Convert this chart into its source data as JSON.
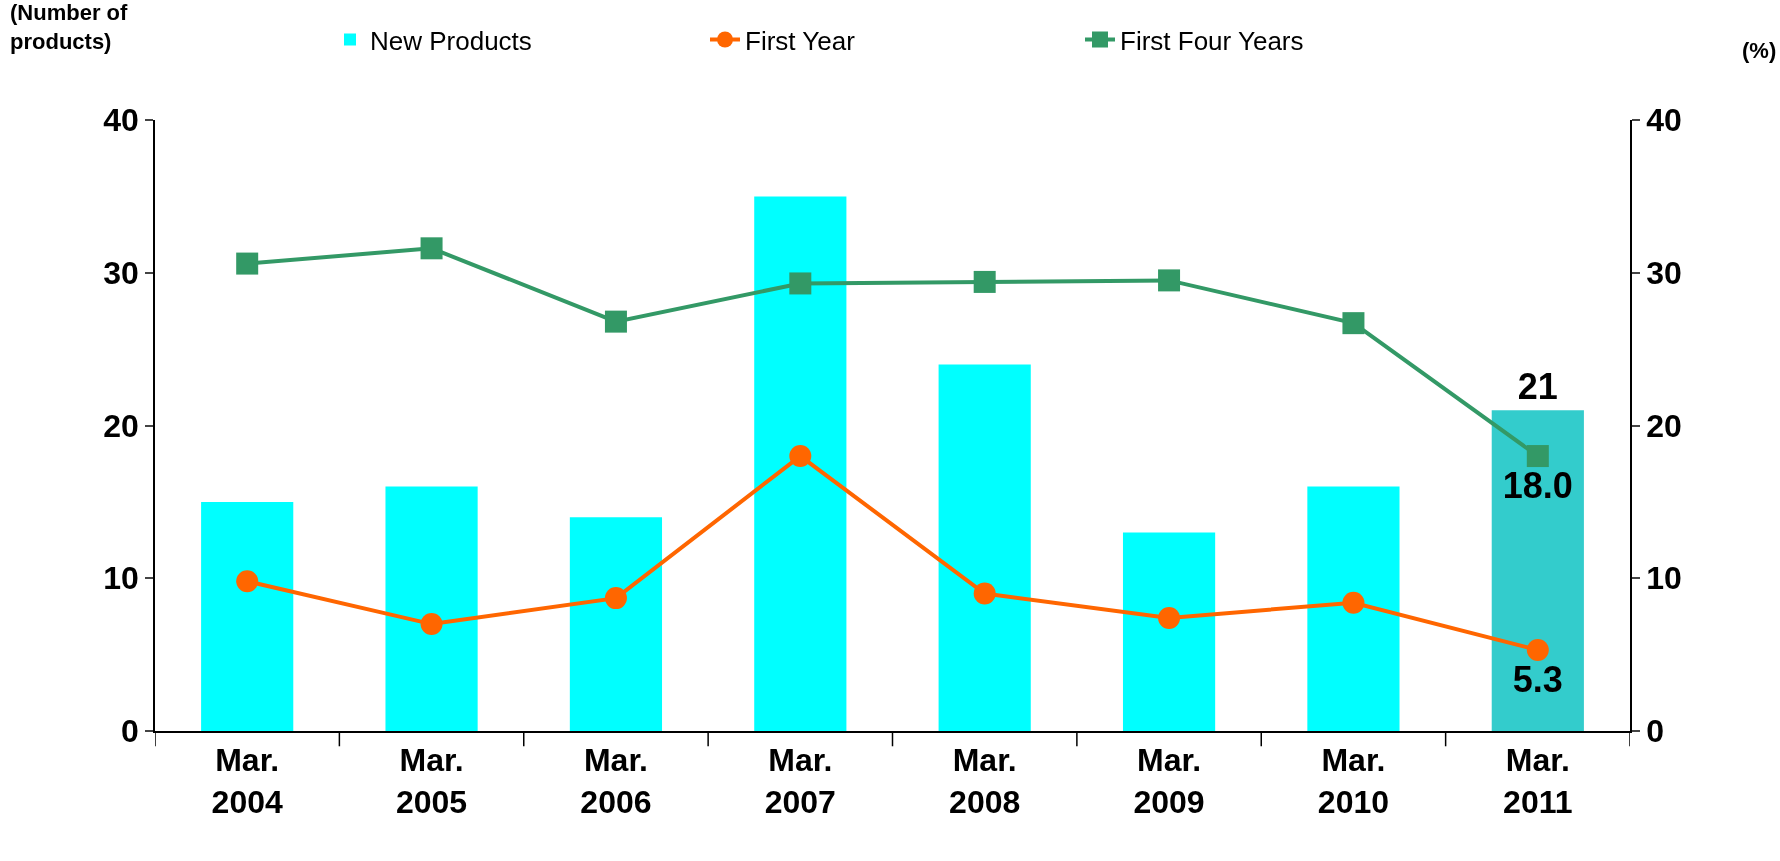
{
  "chart_data": {
    "type": "bar",
    "ylabel": "(Number of\nproducts)",
    "y2label": "(%)",
    "categories": [
      "Mar.\n2004",
      "Mar.\n2005",
      "Mar.\n2006",
      "Mar.\n2007",
      "Mar.\n2008",
      "Mar.\n2009",
      "Mar.\n2010",
      "Mar.\n2011"
    ],
    "ylim": [
      0,
      40
    ],
    "yticks": [
      0,
      10,
      20,
      30,
      40
    ],
    "y2lim": [
      0,
      40
    ],
    "y2ticks": [
      0,
      10,
      20,
      30,
      40
    ],
    "grid": false,
    "legend": "top",
    "series": [
      {
        "name": "New Products",
        "colors": [
          "#00ffff",
          "#00ffff",
          "#00ffff",
          "#00ffff",
          "#00ffff",
          "#00ffff",
          "#00ffff",
          "#33cccc"
        ],
        "values": [
          15,
          16,
          14,
          35,
          24,
          13,
          16,
          21
        ],
        "value_labels": [
          null,
          null,
          null,
          null,
          null,
          null,
          null,
          "21"
        ]
      },
      {
        "name": "First Year",
        "type": "line",
        "axis": "y2",
        "color": "#ff6600",
        "marker": "circle",
        "values": [
          9.8,
          7.0,
          8.7,
          18.0,
          9.0,
          7.4,
          8.4,
          5.3
        ],
        "value_labels": [
          null,
          null,
          null,
          null,
          null,
          null,
          null,
          "5.3"
        ]
      },
      {
        "name": "First Four Years",
        "type": "line",
        "axis": "y2",
        "color": "#339966",
        "marker": "square",
        "values": [
          30.6,
          31.6,
          26.8,
          29.3,
          29.4,
          29.5,
          26.7,
          18.0
        ],
        "value_labels": [
          null,
          null,
          null,
          null,
          null,
          null,
          null,
          "18.0"
        ]
      }
    ]
  }
}
